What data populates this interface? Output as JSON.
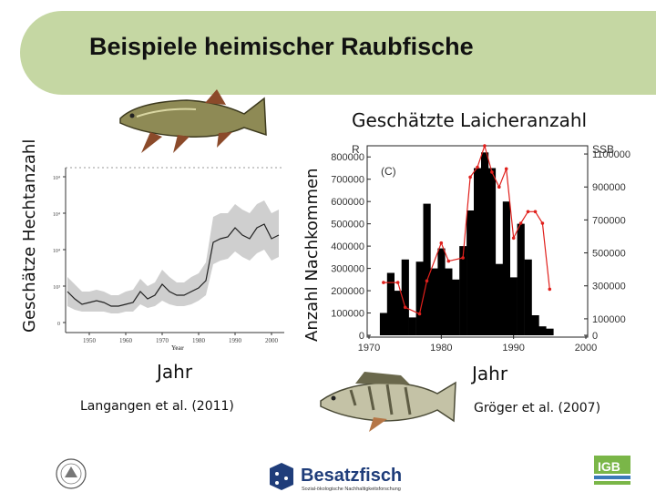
{
  "slide": {
    "title": "Beispiele heimischer Raubfische",
    "left_caption": "Geschätze Hechtanzahl",
    "right_caption": "Geschätzte Laicheranzahl",
    "right_ylabel": "Anzahl Nachkommen",
    "left_xlabel": "Jahr",
    "right_xlabel": "Jahr",
    "left_citation": "Langangen et al. (2011)",
    "right_citation": "Gröger et al. (2007)",
    "logo_main": "Besatzfisch",
    "logo_sub": "Sozial-ökologische Nachhaltigkeitsforschung",
    "logo_igb": "IGB",
    "icons": [
      "pike-fish-icon",
      "zander-fish-icon",
      "university-seal-icon",
      "besatzfisch-logo-icon",
      "igb-logo-icon"
    ]
  },
  "chart_data": [
    {
      "type": "line",
      "x_axis_title": "Year",
      "x_ticks": [
        1950,
        1960,
        1970,
        1980,
        1990,
        2000
      ],
      "y_ticks": [
        "0",
        "10³",
        "10⁴",
        "10⁴",
        "10⁴"
      ],
      "y_tick_values": [
        0,
        1,
        2,
        3,
        4
      ],
      "xlim": [
        1944,
        2003
      ],
      "ylim": [
        -0.2,
        4.2
      ],
      "series": [
        {
          "x": [
            1944,
            1946,
            1948,
            1950,
            1952,
            1954,
            1956,
            1958,
            1960,
            1962,
            1964,
            1966,
            1968,
            1970,
            1972,
            1974,
            1976,
            1978,
            1980,
            1982,
            1984,
            1986,
            1988,
            1990,
            1992,
            1994,
            1996,
            1998,
            2000,
            2002
          ],
          "values": [
            0.85,
            0.65,
            0.5,
            0.55,
            0.6,
            0.55,
            0.45,
            0.45,
            0.5,
            0.55,
            0.85,
            0.65,
            0.75,
            1.05,
            0.85,
            0.75,
            0.75,
            0.85,
            0.95,
            1.15,
            2.2,
            2.3,
            2.35,
            2.6,
            2.4,
            2.3,
            2.6,
            2.7,
            2.3,
            2.4
          ],
          "lower": [
            0.45,
            0.35,
            0.3,
            0.3,
            0.3,
            0.3,
            0.25,
            0.25,
            0.3,
            0.3,
            0.5,
            0.4,
            0.45,
            0.6,
            0.5,
            0.45,
            0.45,
            0.5,
            0.6,
            0.75,
            1.6,
            1.7,
            1.75,
            1.95,
            1.8,
            1.7,
            1.9,
            2.0,
            1.7,
            1.8
          ],
          "upper": [
            1.25,
            1.05,
            0.85,
            0.85,
            0.9,
            0.85,
            0.75,
            0.75,
            0.85,
            0.9,
            1.2,
            1.0,
            1.1,
            1.45,
            1.25,
            1.1,
            1.1,
            1.25,
            1.35,
            1.65,
            2.9,
            3.0,
            3.0,
            3.25,
            3.1,
            3.0,
            3.25,
            3.35,
            3.0,
            3.1
          ]
        }
      ]
    },
    {
      "type": "bar",
      "label_c": "(C)",
      "left_axis_label": "R",
      "right_axis_label": "SSB",
      "x_ticks": [
        1970,
        1980,
        1990,
        2000
      ],
      "y_ticks": [
        0,
        100000,
        200000,
        300000,
        400000,
        500000,
        600000,
        700000,
        800000
      ],
      "y2_ticks": [
        0,
        100000,
        300000,
        500000,
        700000,
        900000,
        1100000
      ],
      "ylim": [
        0,
        850000
      ],
      "y2lim": [
        0,
        1150000
      ],
      "xlim": [
        1970,
        2000
      ],
      "bars": {
        "x": [
          1972,
          1973,
          1974,
          1975,
          1976,
          1977,
          1978,
          1979,
          1980,
          1981,
          1982,
          1983,
          1984,
          1985,
          1986,
          1987,
          1988,
          1989,
          1990,
          1991,
          1992,
          1993,
          1994,
          1995
        ],
        "values": [
          100000,
          280000,
          200000,
          340000,
          80000,
          330000,
          590000,
          300000,
          390000,
          300000,
          250000,
          400000,
          560000,
          750000,
          820000,
          750000,
          320000,
          600000,
          260000,
          500000,
          340000,
          90000,
          40000,
          30000
        ]
      },
      "line": {
        "name": "SSB",
        "x": [
          1972,
          1974,
          1975,
          1977,
          1978,
          1980,
          1981,
          1983,
          1984,
          1985,
          1986,
          1987,
          1988,
          1989,
          1990,
          1991,
          1992,
          1993,
          1994,
          1995
        ],
        "values": [
          320000,
          320000,
          170000,
          130000,
          330000,
          560000,
          450000,
          470000,
          960000,
          1020000,
          1150000,
          990000,
          900000,
          1010000,
          590000,
          680000,
          750000,
          750000,
          680000,
          280000
        ]
      }
    }
  ]
}
